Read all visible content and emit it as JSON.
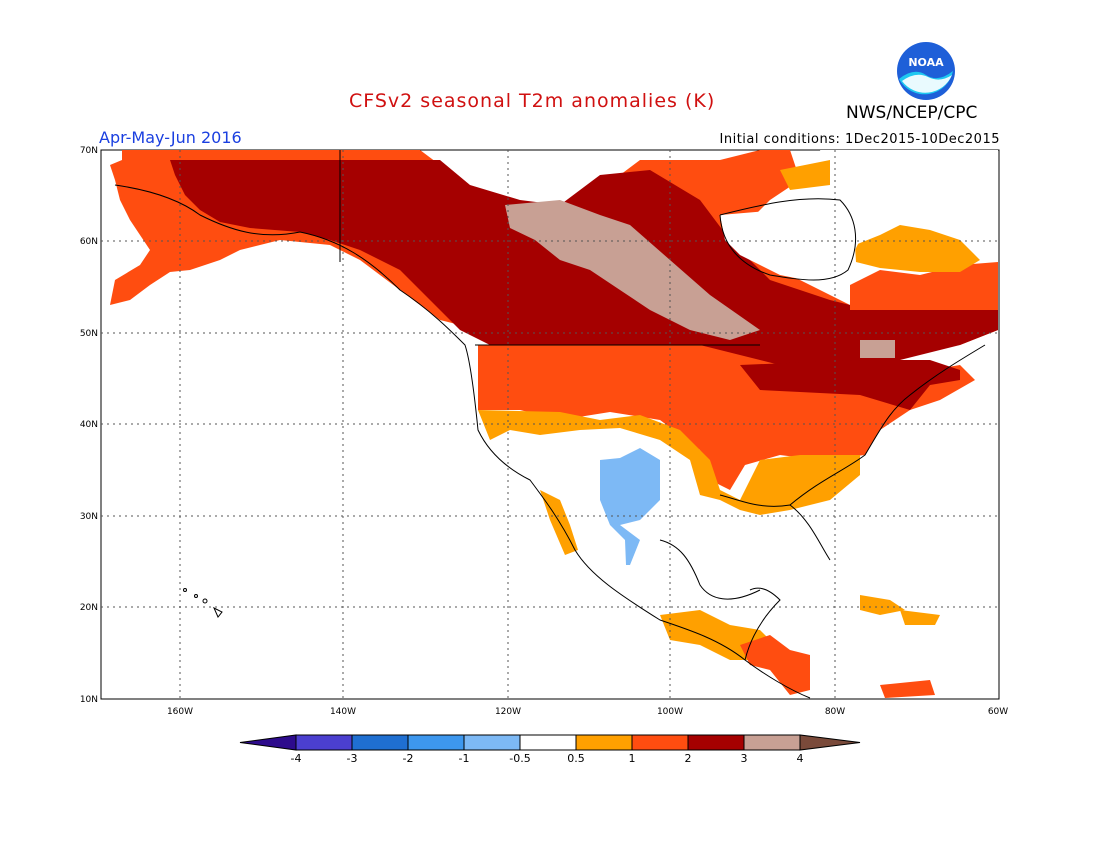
{
  "header": {
    "title": "CFSv2 seasonal T2m anomalies (K)",
    "season": "Apr-May-Jun 2016",
    "agency": "NWS/NCEP/CPC",
    "init": "Initial conditions: 1Dec2015-10Dec2015",
    "logo_text": "NOAA"
  },
  "axes": {
    "lat_labels": [
      "70N",
      "60N",
      "50N",
      "40N",
      "30N",
      "20N",
      "10N"
    ],
    "lon_labels": [
      "160W",
      "140W",
      "120W",
      "100W",
      "80W",
      "60W"
    ]
  },
  "colorbar": {
    "labels": [
      "-4",
      "-3",
      "-2",
      "-1",
      "-0.5",
      "0.5",
      "1",
      "2",
      "3",
      "4"
    ],
    "colors": [
      "#2d0b8c",
      "#4b3fcf",
      "#1f6fd1",
      "#3d97ee",
      "#7db9f5",
      "#ffffff",
      "#ffa000",
      "#ff4d10",
      "#a50000",
      "#c8a094",
      "#7a4a3a"
    ]
  },
  "colors": {
    "title": "#d01010",
    "season": "#1a3fe0",
    "dark_red": "#a50000",
    "red": "#ff4d10",
    "orange": "#ffa000",
    "tan": "#c8a094",
    "blue": "#7db9f5"
  }
}
